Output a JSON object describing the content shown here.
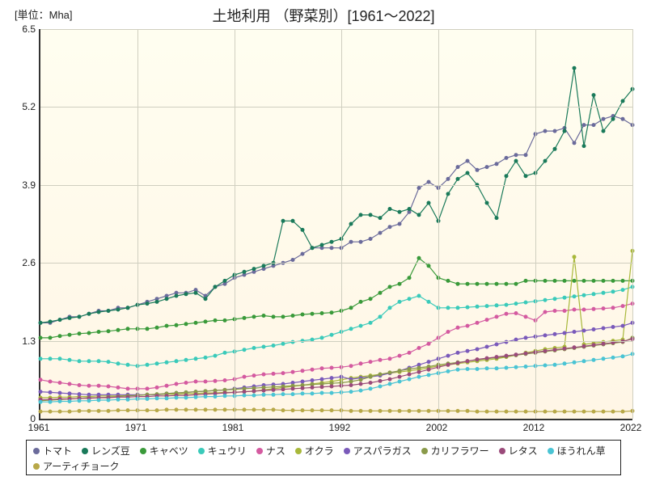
{
  "unit_label": "[単位：Mha]",
  "title": "土地利用 （野菜別）[1961～2022]",
  "chart": {
    "type": "line",
    "background_gradient": [
      "#fffef0",
      "#fff6e6"
    ],
    "grid_color": "#d0cfc0",
    "axis_color": "#333333",
    "xlim": [
      1961,
      2022
    ],
    "ylim": [
      0,
      6.5
    ],
    "xticks": [
      1961,
      1971,
      1981,
      1992,
      2002,
      2012,
      2022
    ],
    "yticks": [
      0,
      1.3,
      2.6,
      3.9,
      5.2,
      6.5
    ],
    "title_fontsize": 18,
    "label_fontsize": 12,
    "marker_size": 2.5,
    "line_width": 1.2,
    "years": [
      1961,
      1962,
      1963,
      1964,
      1965,
      1966,
      1967,
      1968,
      1969,
      1970,
      1971,
      1972,
      1973,
      1974,
      1975,
      1976,
      1977,
      1978,
      1979,
      1980,
      1981,
      1982,
      1983,
      1984,
      1985,
      1986,
      1987,
      1988,
      1989,
      1990,
      1991,
      1992,
      1993,
      1994,
      1995,
      1996,
      1997,
      1998,
      1999,
      2000,
      2001,
      2002,
      2003,
      2004,
      2005,
      2006,
      2007,
      2008,
      2009,
      2010,
      2011,
      2012,
      2013,
      2014,
      2015,
      2016,
      2017,
      2018,
      2019,
      2020,
      2021,
      2022
    ],
    "series": [
      {
        "name": "トマト",
        "color": "#6b6b9b",
        "data": [
          1.6,
          1.6,
          1.65,
          1.7,
          1.7,
          1.75,
          1.8,
          1.8,
          1.85,
          1.85,
          1.9,
          1.95,
          2.0,
          2.05,
          2.1,
          2.1,
          2.15,
          2.05,
          2.2,
          2.25,
          2.35,
          2.4,
          2.45,
          2.5,
          2.55,
          2.6,
          2.65,
          2.75,
          2.85,
          2.85,
          2.85,
          2.85,
          2.95,
          2.95,
          3.0,
          3.1,
          3.2,
          3.25,
          3.45,
          3.85,
          3.95,
          3.85,
          4.0,
          4.2,
          4.3,
          4.15,
          4.2,
          4.25,
          4.35,
          4.4,
          4.4,
          4.75,
          4.8,
          4.8,
          4.85,
          4.6,
          4.9,
          4.9,
          5.0,
          5.05,
          5.0,
          4.9
        ]
      },
      {
        "name": "レンズ豆",
        "color": "#1a7a5a",
        "data": [
          1.6,
          1.62,
          1.65,
          1.68,
          1.7,
          1.75,
          1.78,
          1.8,
          1.82,
          1.85,
          1.9,
          1.92,
          1.95,
          2.0,
          2.05,
          2.08,
          2.1,
          2.0,
          2.2,
          2.3,
          2.4,
          2.45,
          2.5,
          2.55,
          2.6,
          3.3,
          3.3,
          3.15,
          2.85,
          2.9,
          2.95,
          3.0,
          3.25,
          3.4,
          3.4,
          3.35,
          3.5,
          3.45,
          3.5,
          3.4,
          3.6,
          3.3,
          3.75,
          4.0,
          4.1,
          3.9,
          3.6,
          3.35,
          4.05,
          4.3,
          4.05,
          4.1,
          4.3,
          4.5,
          4.8,
          5.85,
          4.55,
          5.4,
          4.8,
          5.0,
          5.3,
          5.5
        ]
      },
      {
        "name": "キャベツ",
        "color": "#3a9a3a",
        "data": [
          1.35,
          1.35,
          1.38,
          1.4,
          1.42,
          1.43,
          1.45,
          1.46,
          1.48,
          1.5,
          1.5,
          1.5,
          1.52,
          1.55,
          1.56,
          1.58,
          1.6,
          1.62,
          1.64,
          1.64,
          1.66,
          1.68,
          1.7,
          1.72,
          1.7,
          1.7,
          1.72,
          1.74,
          1.75,
          1.76,
          1.77,
          1.8,
          1.85,
          1.95,
          2.0,
          2.1,
          2.2,
          2.25,
          2.35,
          2.68,
          2.55,
          2.35,
          2.3,
          2.25,
          2.25,
          2.25,
          2.25,
          2.25,
          2.25,
          2.25,
          2.3,
          2.3,
          2.3,
          2.3,
          2.3,
          2.3,
          2.3,
          2.3,
          2.3,
          2.3,
          2.3,
          2.3
        ]
      },
      {
        "name": "キュウリ",
        "color": "#3acaba",
        "data": [
          1.0,
          1.0,
          1.0,
          0.98,
          0.96,
          0.96,
          0.96,
          0.95,
          0.92,
          0.9,
          0.88,
          0.9,
          0.92,
          0.94,
          0.96,
          0.98,
          1.0,
          1.02,
          1.05,
          1.1,
          1.12,
          1.15,
          1.18,
          1.2,
          1.22,
          1.25,
          1.28,
          1.3,
          1.32,
          1.35,
          1.4,
          1.45,
          1.5,
          1.55,
          1.6,
          1.7,
          1.85,
          1.95,
          2.0,
          2.05,
          1.95,
          1.85,
          1.85,
          1.85,
          1.86,
          1.87,
          1.88,
          1.89,
          1.9,
          1.92,
          1.94,
          1.96,
          1.98,
          2.0,
          2.02,
          2.04,
          2.06,
          2.08,
          2.1,
          2.12,
          2.15,
          2.2
        ]
      },
      {
        "name": "ナス",
        "color": "#d45aa0",
        "data": [
          0.65,
          0.62,
          0.6,
          0.58,
          0.56,
          0.55,
          0.55,
          0.54,
          0.52,
          0.5,
          0.5,
          0.5,
          0.52,
          0.55,
          0.58,
          0.6,
          0.62,
          0.62,
          0.63,
          0.64,
          0.66,
          0.7,
          0.72,
          0.74,
          0.75,
          0.76,
          0.78,
          0.8,
          0.82,
          0.84,
          0.85,
          0.86,
          0.88,
          0.92,
          0.95,
          0.98,
          1.0,
          1.05,
          1.1,
          1.18,
          1.25,
          1.35,
          1.45,
          1.52,
          1.55,
          1.6,
          1.65,
          1.7,
          1.75,
          1.76,
          1.7,
          1.64,
          1.78,
          1.8,
          1.8,
          1.82,
          1.82,
          1.83,
          1.84,
          1.85,
          1.88,
          1.92
        ]
      },
      {
        "name": "オクラ",
        "color": "#a8b83a",
        "data": [
          0.35,
          0.35,
          0.36,
          0.36,
          0.37,
          0.37,
          0.38,
          0.38,
          0.38,
          0.39,
          0.39,
          0.4,
          0.4,
          0.41,
          0.41,
          0.42,
          0.42,
          0.43,
          0.43,
          0.44,
          0.44,
          0.45,
          0.46,
          0.48,
          0.5,
          0.52,
          0.54,
          0.56,
          0.58,
          0.6,
          0.62,
          0.65,
          0.68,
          0.7,
          0.72,
          0.74,
          0.76,
          0.78,
          0.8,
          0.82,
          0.85,
          0.88,
          0.9,
          0.92,
          0.94,
          0.96,
          0.98,
          1.0,
          1.03,
          1.06,
          1.1,
          1.13,
          1.16,
          1.18,
          1.2,
          2.7,
          1.24,
          1.26,
          1.28,
          1.3,
          1.32,
          2.8
        ]
      },
      {
        "name": "アスパラガス",
        "color": "#7a5aba",
        "data": [
          0.45,
          0.44,
          0.43,
          0.42,
          0.41,
          0.4,
          0.4,
          0.4,
          0.4,
          0.4,
          0.4,
          0.4,
          0.4,
          0.42,
          0.43,
          0.44,
          0.45,
          0.46,
          0.47,
          0.48,
          0.5,
          0.52,
          0.54,
          0.56,
          0.57,
          0.58,
          0.6,
          0.62,
          0.64,
          0.66,
          0.68,
          0.7,
          0.66,
          0.68,
          0.7,
          0.72,
          0.76,
          0.8,
          0.85,
          0.9,
          0.95,
          1.0,
          1.05,
          1.1,
          1.13,
          1.16,
          1.2,
          1.24,
          1.28,
          1.32,
          1.35,
          1.37,
          1.39,
          1.41,
          1.43,
          1.45,
          1.47,
          1.49,
          1.51,
          1.53,
          1.55,
          1.6
        ]
      },
      {
        "name": "カリフラワー",
        "color": "#8a9a4a",
        "data": [
          0.3,
          0.31,
          0.32,
          0.33,
          0.34,
          0.35,
          0.35,
          0.36,
          0.37,
          0.38,
          0.39,
          0.4,
          0.41,
          0.42,
          0.43,
          0.44,
          0.45,
          0.46,
          0.47,
          0.48,
          0.49,
          0.5,
          0.51,
          0.52,
          0.53,
          0.54,
          0.55,
          0.56,
          0.57,
          0.58,
          0.59,
          0.6,
          0.62,
          0.65,
          0.7,
          0.74,
          0.77,
          0.8,
          0.83,
          0.85,
          0.87,
          0.9,
          0.92,
          0.94,
          0.96,
          0.98,
          1.0,
          1.02,
          1.04,
          1.06,
          1.08,
          1.1,
          1.12,
          1.14,
          1.16,
          1.18,
          1.2,
          1.22,
          1.24,
          1.26,
          1.28,
          1.35
        ]
      },
      {
        "name": "レタス",
        "color": "#9a4a7a",
        "data": [
          0.32,
          0.32,
          0.33,
          0.33,
          0.34,
          0.34,
          0.35,
          0.35,
          0.36,
          0.36,
          0.37,
          0.37,
          0.38,
          0.38,
          0.39,
          0.39,
          0.4,
          0.41,
          0.42,
          0.43,
          0.44,
          0.45,
          0.46,
          0.47,
          0.48,
          0.49,
          0.5,
          0.51,
          0.52,
          0.53,
          0.54,
          0.55,
          0.56,
          0.58,
          0.6,
          0.63,
          0.66,
          0.7,
          0.74,
          0.78,
          0.82,
          0.86,
          0.9,
          0.93,
          0.96,
          0.99,
          1.01,
          1.03,
          1.05,
          1.07,
          1.09,
          1.11,
          1.13,
          1.15,
          1.17,
          1.19,
          1.21,
          1.23,
          1.25,
          1.27,
          1.29,
          1.33
        ]
      },
      {
        "name": "ほうれん草",
        "color": "#4ac4d4",
        "data": [
          0.28,
          0.28,
          0.29,
          0.29,
          0.3,
          0.3,
          0.31,
          0.31,
          0.32,
          0.32,
          0.33,
          0.33,
          0.34,
          0.34,
          0.35,
          0.35,
          0.36,
          0.37,
          0.37,
          0.38,
          0.38,
          0.39,
          0.39,
          0.4,
          0.4,
          0.41,
          0.41,
          0.42,
          0.42,
          0.43,
          0.43,
          0.44,
          0.45,
          0.47,
          0.5,
          0.54,
          0.58,
          0.62,
          0.66,
          0.7,
          0.73,
          0.76,
          0.79,
          0.82,
          0.83,
          0.83,
          0.84,
          0.84,
          0.85,
          0.86,
          0.87,
          0.88,
          0.89,
          0.9,
          0.92,
          0.94,
          0.96,
          0.98,
          1.0,
          1.02,
          1.04,
          1.08
        ]
      },
      {
        "name": "アーティチョーク",
        "color": "#b8a848",
        "data": [
          0.12,
          0.12,
          0.12,
          0.12,
          0.13,
          0.13,
          0.13,
          0.13,
          0.14,
          0.14,
          0.14,
          0.14,
          0.14,
          0.15,
          0.15,
          0.15,
          0.15,
          0.15,
          0.15,
          0.15,
          0.15,
          0.15,
          0.15,
          0.15,
          0.15,
          0.14,
          0.14,
          0.14,
          0.14,
          0.14,
          0.14,
          0.14,
          0.13,
          0.13,
          0.13,
          0.13,
          0.13,
          0.13,
          0.13,
          0.13,
          0.13,
          0.13,
          0.13,
          0.13,
          0.13,
          0.12,
          0.12,
          0.12,
          0.12,
          0.12,
          0.12,
          0.12,
          0.12,
          0.12,
          0.12,
          0.12,
          0.12,
          0.12,
          0.12,
          0.12,
          0.12,
          0.13
        ]
      }
    ]
  },
  "legend_labels": [
    "トマト",
    "レンズ豆",
    "キャベツ",
    "キュウリ",
    "ナス",
    "オクラ",
    "アスパラガス",
    "カリフラワー",
    "レタス",
    "ほうれん草",
    "アーティチョーク"
  ]
}
